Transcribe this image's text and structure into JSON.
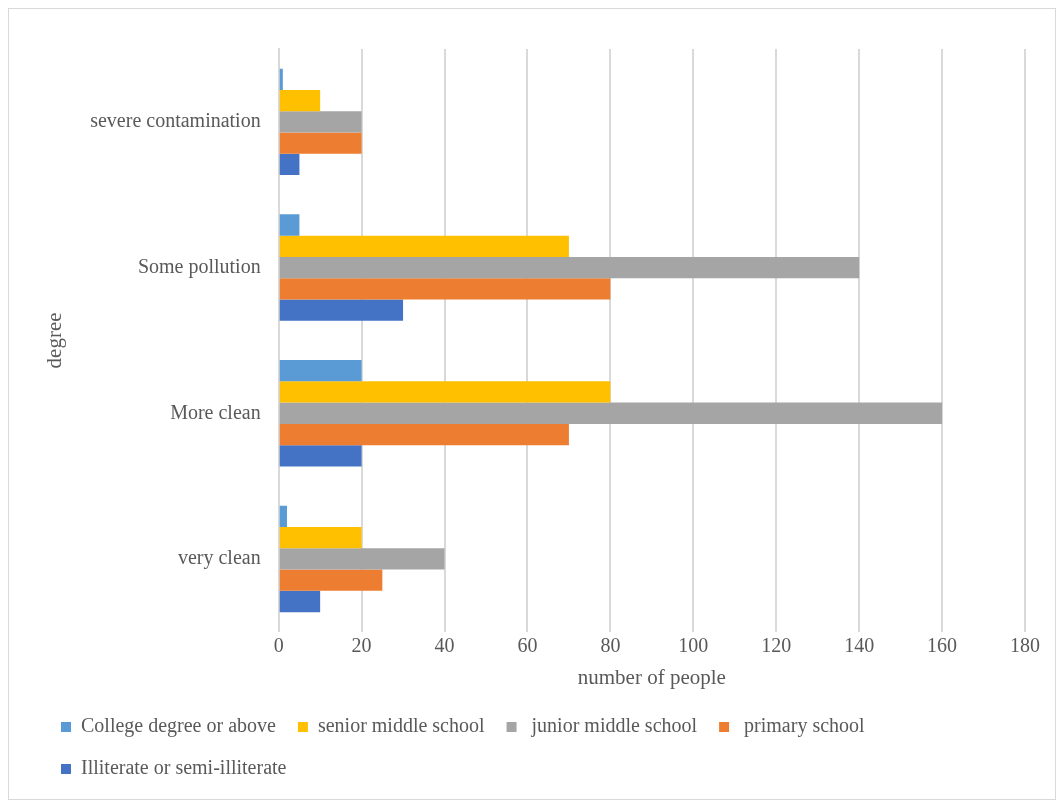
{
  "chart_data": {
    "type": "bar",
    "orientation": "horizontal",
    "xlabel": "number of people",
    "ylabel": "degree",
    "categories": [
      "severe contamination",
      "Some pollution",
      "More clean",
      "very clean"
    ],
    "series": [
      {
        "name": "College degree or above",
        "color": "#5b9bd5",
        "values": [
          1,
          5,
          20,
          2
        ]
      },
      {
        "name": "senior middle school",
        "color": "#ffc000",
        "values": [
          10,
          70,
          80,
          20
        ]
      },
      {
        "name": " junior middle school",
        "color": "#a5a5a5",
        "values": [
          20,
          140,
          160,
          40
        ]
      },
      {
        "name": " primary school",
        "color": "#ed7d31",
        "values": [
          20,
          80,
          70,
          25
        ]
      },
      {
        "name": "Illiterate or semi-illiterate",
        "color": "#4472c4",
        "values": [
          5,
          30,
          20,
          10
        ]
      }
    ],
    "xlim": [
      0,
      180
    ],
    "xticks": [
      0,
      20,
      40,
      60,
      80,
      100,
      120,
      140,
      160,
      180
    ],
    "grid": "x",
    "legend": "bottom"
  }
}
